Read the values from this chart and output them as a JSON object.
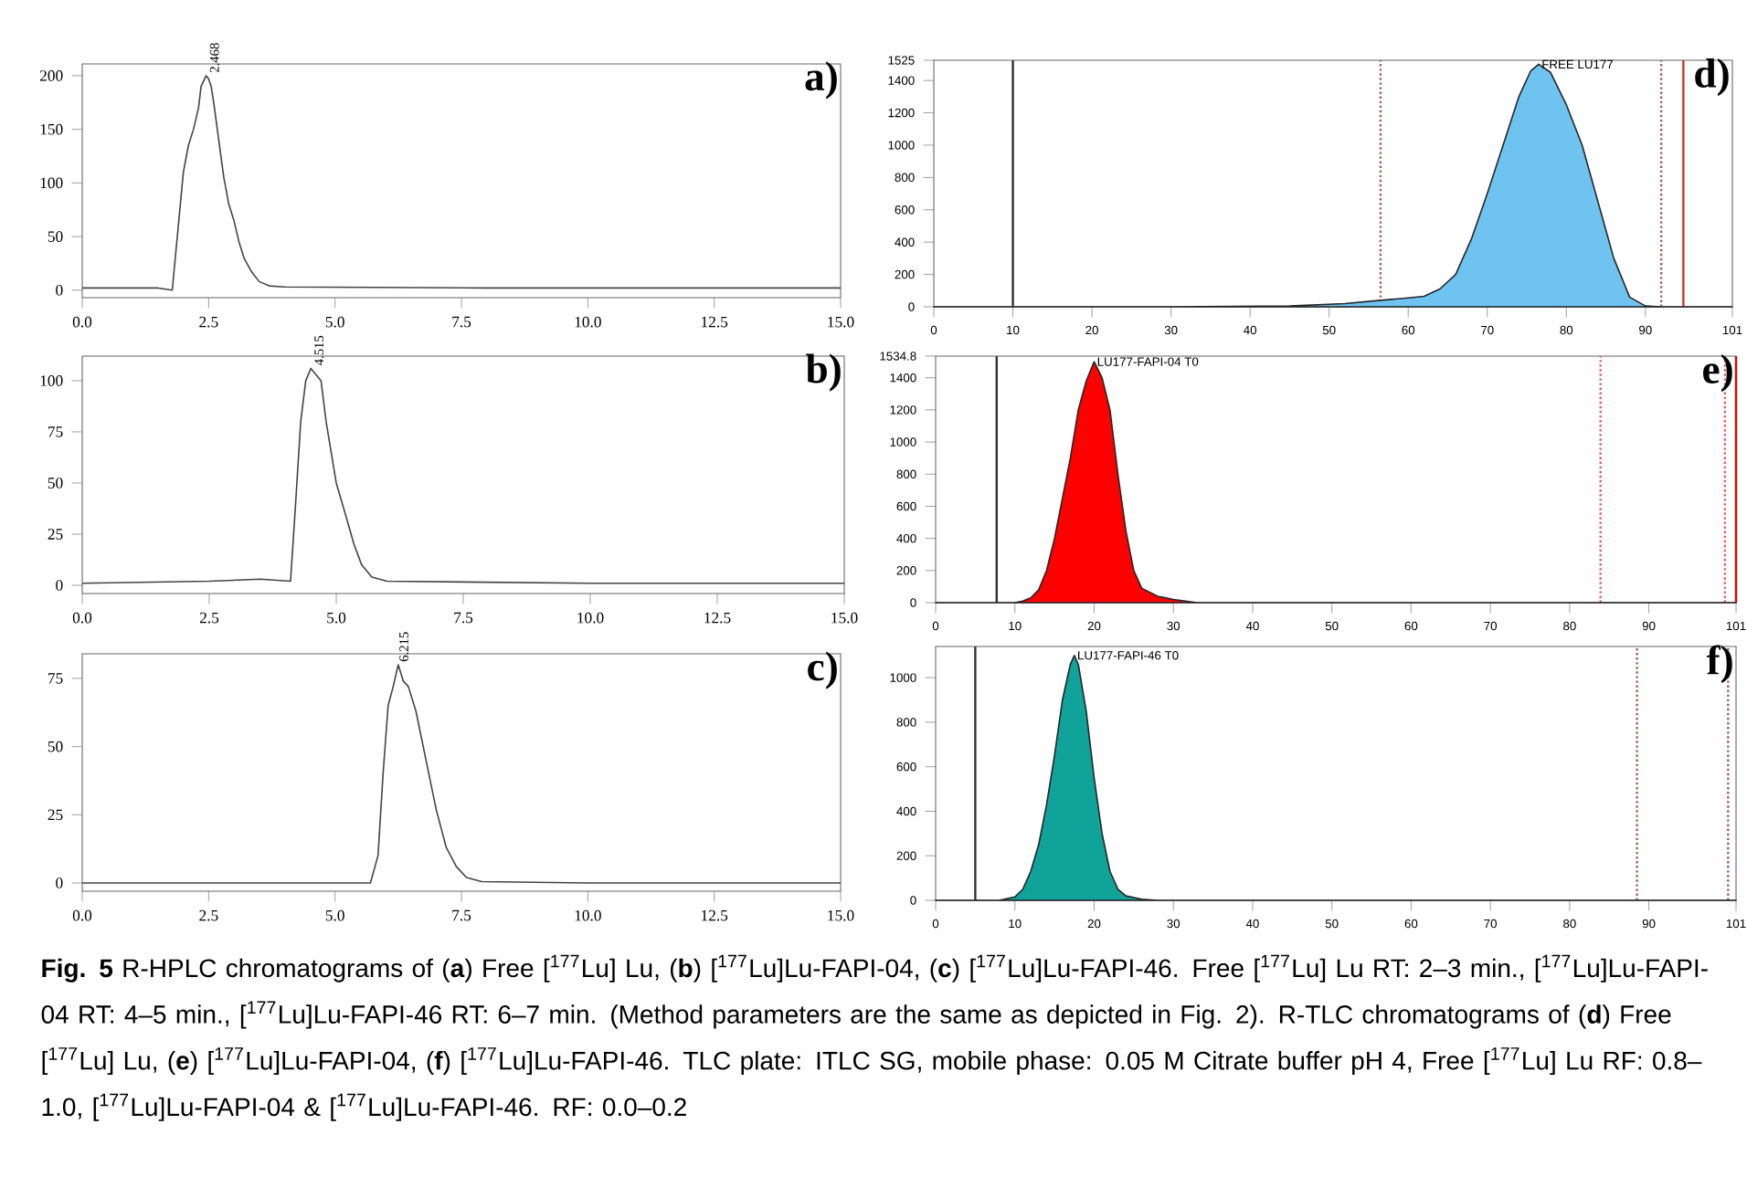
{
  "chart_data": [
    {
      "type": "line",
      "title": "a)",
      "xlim": [
        0,
        15
      ],
      "ylim": [
        -7,
        211
      ],
      "xticks": [
        {
          "value": 0,
          "label": "0.0"
        },
        {
          "value": 2.5,
          "label": "2.5"
        },
        {
          "value": 5,
          "label": "5.0"
        },
        {
          "value": 7.5,
          "label": "7.5"
        },
        {
          "value": 10,
          "label": "10.0"
        },
        {
          "value": 12.5,
          "label": "12.5"
        },
        {
          "value": 15,
          "label": "15.0"
        }
      ],
      "yticks": [
        0,
        50,
        100,
        150,
        200
      ],
      "series": [
        {
          "color": "#444444",
          "x": [
            0,
            1.5,
            1.78,
            1.9,
            2.0,
            2.1,
            2.2,
            2.3,
            2.35,
            2.45,
            2.5,
            2.55,
            2.6,
            2.7,
            2.8,
            2.9,
            3.0,
            3.1,
            3.2,
            3.35,
            3.5,
            3.7,
            4.0,
            8,
            12,
            15
          ],
          "values": [
            2,
            2,
            0,
            60,
            110,
            135,
            150,
            170,
            190,
            200,
            197,
            190,
            175,
            140,
            105,
            80,
            65,
            45,
            30,
            17,
            8,
            4,
            3,
            2,
            2,
            2
          ]
        }
      ],
      "annotations": [
        {
          "text": "2.468",
          "x": 2.468,
          "y": 200
        }
      ]
    },
    {
      "type": "line",
      "title": "b)",
      "xlim": [
        0,
        15
      ],
      "ylim": [
        -4,
        112
      ],
      "xticks": [
        {
          "value": 0,
          "label": "0.0"
        },
        {
          "value": 2.5,
          "label": "2.5"
        },
        {
          "value": 5,
          "label": "5.0"
        },
        {
          "value": 7.5,
          "label": "7.5"
        },
        {
          "value": 10,
          "label": "10.0"
        },
        {
          "value": 12.5,
          "label": "12.5"
        },
        {
          "value": 15,
          "label": "15.0"
        }
      ],
      "yticks": [
        0,
        25,
        50,
        75,
        100
      ],
      "series": [
        {
          "color": "#444444",
          "x": [
            0,
            2.5,
            3.5,
            4.1,
            4.2,
            4.3,
            4.4,
            4.5,
            4.6,
            4.7,
            4.8,
            4.9,
            5.0,
            5.2,
            5.35,
            5.5,
            5.7,
            6.0,
            10,
            15
          ],
          "values": [
            1,
            2,
            3,
            2,
            40,
            80,
            100,
            106,
            103,
            100,
            80,
            65,
            50,
            33,
            20,
            10,
            4,
            2,
            1,
            1
          ]
        }
      ],
      "annotations": [
        {
          "text": "4.515",
          "x": 4.515,
          "y": 106
        }
      ]
    },
    {
      "type": "line",
      "title": "c)",
      "xlim": [
        0,
        15
      ],
      "ylim": [
        -3,
        84
      ],
      "xticks": [
        {
          "value": 0,
          "label": "0.0"
        },
        {
          "value": 2.5,
          "label": "2.5"
        },
        {
          "value": 5,
          "label": "5.0"
        },
        {
          "value": 7.5,
          "label": "7.5"
        },
        {
          "value": 10,
          "label": "10.0"
        },
        {
          "value": 12.5,
          "label": "12.5"
        },
        {
          "value": 15,
          "label": "15.0"
        }
      ],
      "yticks": [
        0,
        25,
        50,
        75
      ],
      "series": [
        {
          "color": "#444444",
          "x": [
            0,
            5.7,
            5.85,
            5.95,
            6.05,
            6.15,
            6.25,
            6.35,
            6.45,
            6.6,
            6.8,
            7.0,
            7.2,
            7.4,
            7.6,
            7.9,
            10,
            15
          ],
          "values": [
            0,
            0,
            10,
            40,
            65,
            72,
            80,
            74,
            72,
            63,
            45,
            27,
            13,
            6,
            2,
            0.5,
            0,
            0
          ]
        }
      ],
      "annotations": [
        {
          "text": "6.215",
          "x": 6.215,
          "y": 80
        }
      ]
    },
    {
      "type": "area",
      "title": "d)",
      "xlim": [
        0,
        101
      ],
      "ylim": [
        0,
        1525
      ],
      "xticks": [
        0,
        10,
        20,
        30,
        40,
        50,
        60,
        70,
        80,
        90,
        101
      ],
      "yticks": [
        0,
        200,
        400,
        600,
        800,
        1000,
        1200,
        1400,
        1525
      ],
      "series": [
        {
          "color": "#6ec3f0",
          "x": [
            0,
            30,
            45,
            52,
            56.5,
            60,
            62,
            64,
            66,
            68,
            70,
            72,
            74,
            75.5,
            76.5,
            78,
            80,
            82,
            84,
            86,
            88,
            90,
            92,
            101
          ],
          "values": [
            0,
            0,
            5,
            20,
            40,
            55,
            65,
            110,
            200,
            420,
            700,
            1000,
            1300,
            1460,
            1500,
            1450,
            1250,
            1000,
            650,
            300,
            60,
            5,
            0,
            0
          ]
        }
      ],
      "ref_lines": [
        {
          "axis": "x",
          "value": 10,
          "color": "#333333",
          "line_style": "solid"
        },
        {
          "axis": "x",
          "value": 56.5,
          "color": "#a06060",
          "line_style": "dotted"
        },
        {
          "axis": "x",
          "value": 92,
          "color": "#a06060",
          "line_style": "dotted"
        },
        {
          "axis": "x",
          "value": 94.8,
          "color": "#c0392b",
          "line_style": "solid"
        }
      ],
      "annotations": [
        {
          "text": "FREE LU177",
          "x": 76.5,
          "y": 1500
        }
      ]
    },
    {
      "type": "area",
      "title": "e)",
      "xlim": [
        0,
        101
      ],
      "ylim": [
        0,
        1534.8
      ],
      "xticks": [
        0,
        10,
        20,
        30,
        40,
        50,
        60,
        70,
        80,
        90,
        101
      ],
      "yticks": [
        0,
        200,
        400,
        600,
        800,
        1000,
        1200,
        1400,
        1534.8
      ],
      "series": [
        {
          "color": "#ff0000",
          "x": [
            0,
            10,
            11,
            12,
            13,
            14,
            15,
            16,
            17,
            18,
            19,
            20,
            21,
            22,
            23,
            24,
            25,
            26,
            28,
            30,
            33,
            101
          ],
          "values": [
            0,
            0,
            10,
            30,
            80,
            200,
            400,
            650,
            900,
            1200,
            1380,
            1500,
            1400,
            1200,
            800,
            450,
            200,
            90,
            40,
            20,
            0,
            0
          ]
        }
      ],
      "ref_lines": [
        {
          "axis": "x",
          "value": 7.7,
          "color": "#333333",
          "line_style": "solid"
        },
        {
          "axis": "x",
          "value": 83.9,
          "color": "#e06060",
          "line_style": "dotted"
        },
        {
          "axis": "x",
          "value": 99.6,
          "color": "#e06060",
          "line_style": "dotted"
        },
        {
          "axis": "x",
          "value": 101,
          "color": "#e00000",
          "line_style": "solid"
        }
      ],
      "annotations": [
        {
          "text": "LU177-FAPI-04 T0",
          "x": 20,
          "y": 1500
        }
      ]
    },
    {
      "type": "area",
      "title": "f)",
      "xlim": [
        0,
        101
      ],
      "ylim": [
        0,
        1140
      ],
      "xticks": [
        0,
        10,
        20,
        30,
        40,
        50,
        60,
        70,
        80,
        90,
        101
      ],
      "yticks": [
        0,
        200,
        400,
        600,
        800,
        1000
      ],
      "series": [
        {
          "color": "#0fa39a",
          "x": [
            0,
            8,
            10,
            11,
            12,
            13,
            14,
            15,
            16,
            17,
            17.5,
            18,
            19,
            20,
            21,
            22,
            23,
            24,
            26,
            28,
            101
          ],
          "values": [
            0,
            0,
            15,
            50,
            130,
            250,
            430,
            650,
            900,
            1060,
            1100,
            1060,
            850,
            550,
            300,
            130,
            50,
            20,
            5,
            0,
            0
          ]
        }
      ],
      "ref_lines": [
        {
          "axis": "x",
          "value": 5,
          "color": "#333333",
          "line_style": "solid"
        },
        {
          "axis": "x",
          "value": 88.5,
          "color": "#a06060",
          "line_style": "dotted"
        },
        {
          "axis": "x",
          "value": 100,
          "color": "#a06060",
          "line_style": "dotted"
        }
      ],
      "annotations": [
        {
          "text": "LU177-FAPI-46 T0",
          "x": 17.5,
          "y": 1100
        }
      ]
    },
    {
      "type": "other",
      "annotations": [
        "**Fig. 5** R-HPLC chromatograms of (**a**) Free [$^{177}$Lu] Lu, (**b**) [$^{177}$Lu]Lu-FAPI-04, (**c**) [$^{177}$Lu]Lu-FAPI-46. Free [$^{177}$Lu] Lu RT: 2–3 min., [$^{177}$Lu]Lu-FAPI-04 RT: 4–5 min., [$^{177}$Lu]Lu-FAPI-46 RT: 6–7 min. (Method parameters are the same as depicted in Fig. 2). R-TLC chromatograms of (**d**) Free [$^{177}$Lu] Lu, (**e**) [$^{177}$Lu]Lu-FAPI-04, (**f**) [$^{177}$Lu]Lu-FAPI-46. TLC plate: ITLC SG, mobile phase: 0.05 M Citrate buffer pH 4, Free [$^{177}$Lu] Lu RF: 0.8–1.0, [$^{177}$Lu]Lu-FAPI-04 & [$^{177}$Lu]Lu-FAPI-46. RF: 0.0–0.2"
      ]
    }
  ]
}
